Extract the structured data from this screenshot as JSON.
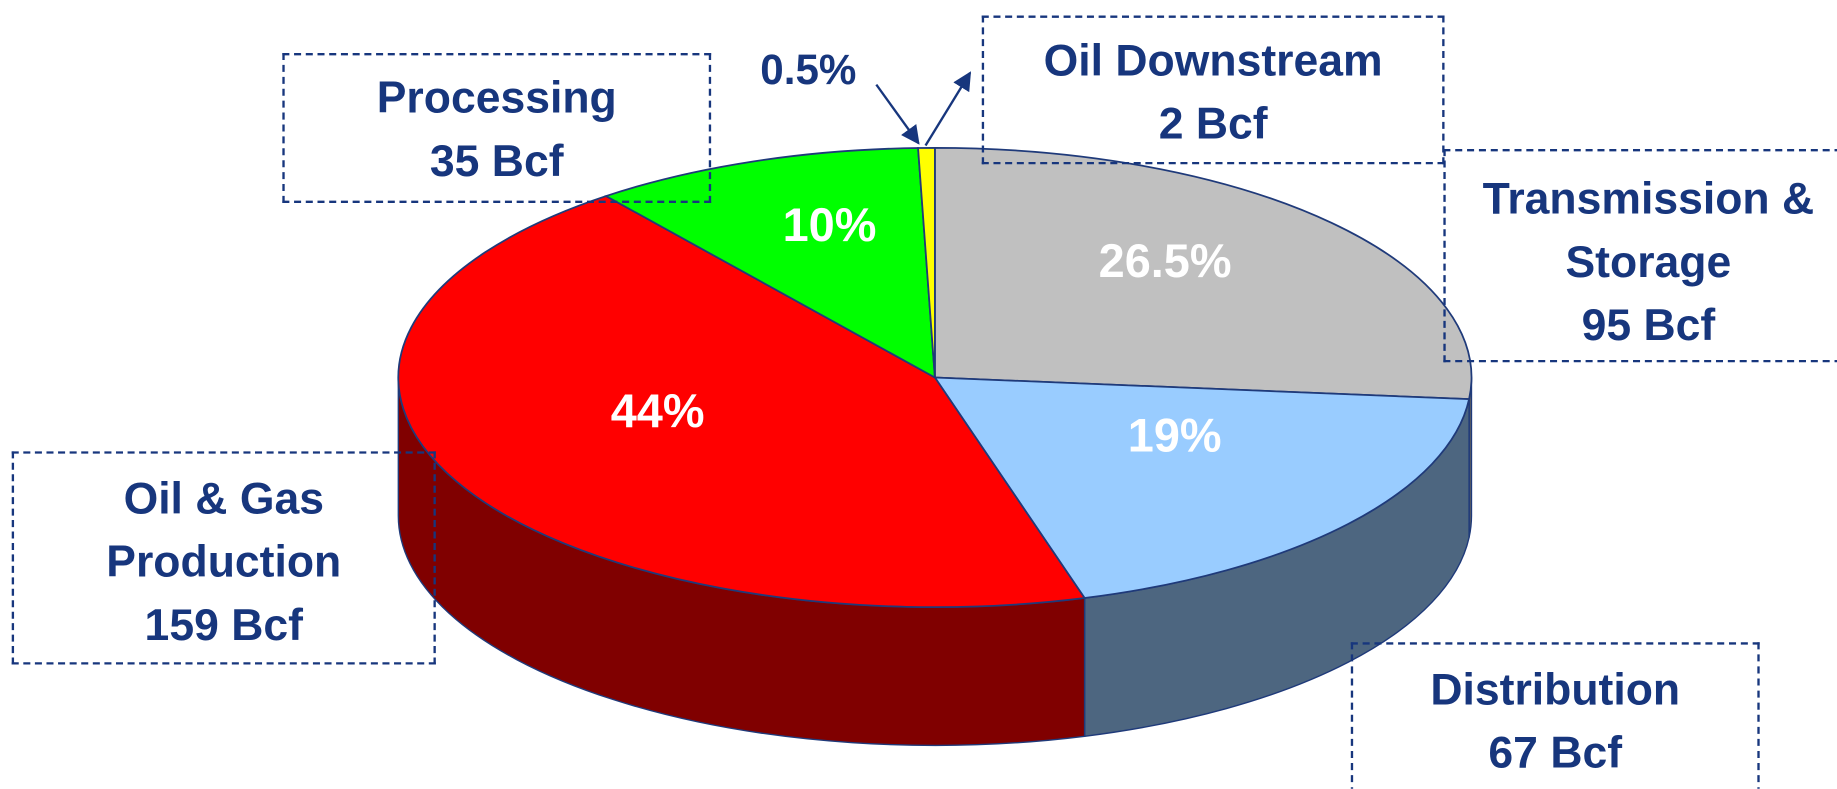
{
  "chart_data": {
    "type": "pie3d",
    "categories": [
      "Transmission & Storage",
      "Distribution",
      "Oil & Gas Production",
      "Processing",
      "Oil Downstream"
    ],
    "values": [
      26.5,
      19,
      44,
      10,
      0.5
    ],
    "value_labels": [
      "26.5%",
      "19%",
      "44%",
      "10%",
      "0.5%"
    ],
    "amounts": [
      95,
      67,
      159,
      35,
      2
    ],
    "amount_labels": [
      "95 Bcf",
      "67 Bcf",
      "159 Bcf",
      "35 Bcf",
      "2 Bcf"
    ],
    "colors": [
      "#c0c0c0",
      "#99ccff",
      "#ff0000",
      "#00ff00",
      "#ffff00"
    ]
  }
}
